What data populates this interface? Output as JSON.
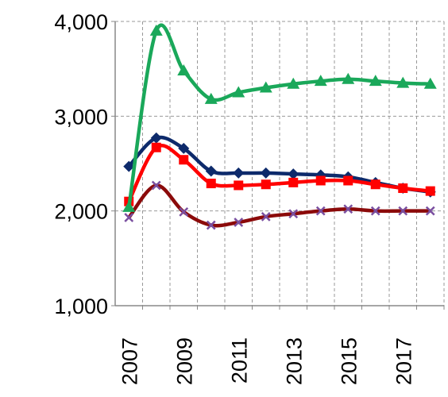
{
  "chart_data": {
    "type": "line",
    "categories": [
      "2007",
      null,
      "2009",
      null,
      "2011",
      null,
      "2013",
      null,
      "2015",
      null,
      "2017",
      null
    ],
    "series": [
      {
        "color": "#0d2a6b",
        "marker": "diamond",
        "values": [
          2470,
          2770,
          2660,
          2420,
          2400,
          2400,
          2390,
          2380,
          2360,
          2300,
          2240,
          2200
        ]
      },
      {
        "color": "#ff0000",
        "marker": "square",
        "values": [
          2100,
          2670,
          2540,
          2290,
          2270,
          2280,
          2300,
          2320,
          2320,
          2280,
          2240,
          2210
        ]
      },
      {
        "color": "#8b0a0a",
        "marker": "cross",
        "values": [
          1930,
          2270,
          1990,
          1850,
          1880,
          1940,
          1970,
          2000,
          2020,
          2000,
          2000,
          2000
        ]
      },
      {
        "color": "#1aa85a",
        "marker": "triangle",
        "values": [
          2040,
          3900,
          3480,
          3180,
          3250,
          3300,
          3340,
          3370,
          3390,
          3370,
          3350,
          3340
        ]
      }
    ],
    "ylim": [
      1000,
      4000
    ],
    "yticks": [
      {
        "value": 1000,
        "label": "1,000"
      },
      {
        "value": 2000,
        "label": "2,000"
      },
      {
        "value": 3000,
        "label": "3,000"
      },
      {
        "value": 4000,
        "label": "4,000"
      }
    ],
    "grid": true
  }
}
